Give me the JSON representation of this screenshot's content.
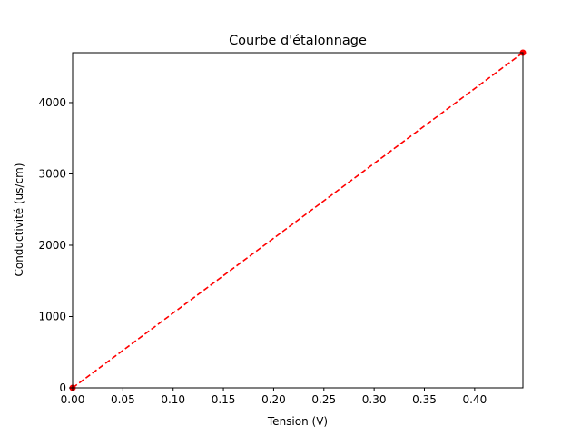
{
  "chart_data": {
    "type": "line",
    "title": "Courbe d'étalonnage",
    "xlabel": "Tension (V)",
    "ylabel": "Conductivité (us/cm)",
    "xlim": [
      0,
      0.448
    ],
    "ylim": [
      0,
      4700
    ],
    "grid": false,
    "x_ticks": [
      0.0,
      0.05,
      0.1,
      0.15,
      0.2,
      0.25,
      0.3,
      0.35,
      0.4
    ],
    "x_tick_labels": [
      "0.00",
      "0.05",
      "0.10",
      "0.15",
      "0.20",
      "0.25",
      "0.30",
      "0.35",
      "0.40"
    ],
    "y_ticks": [
      0,
      1000,
      2000,
      3000,
      4000
    ],
    "y_tick_labels": [
      "0",
      "1000",
      "2000",
      "3000",
      "4000"
    ],
    "series": [
      {
        "color": "#ff0000",
        "line_style": "dashed",
        "marker": "circle",
        "x": [
          0.0,
          0.448
        ],
        "y": [
          0,
          4700
        ]
      }
    ]
  }
}
